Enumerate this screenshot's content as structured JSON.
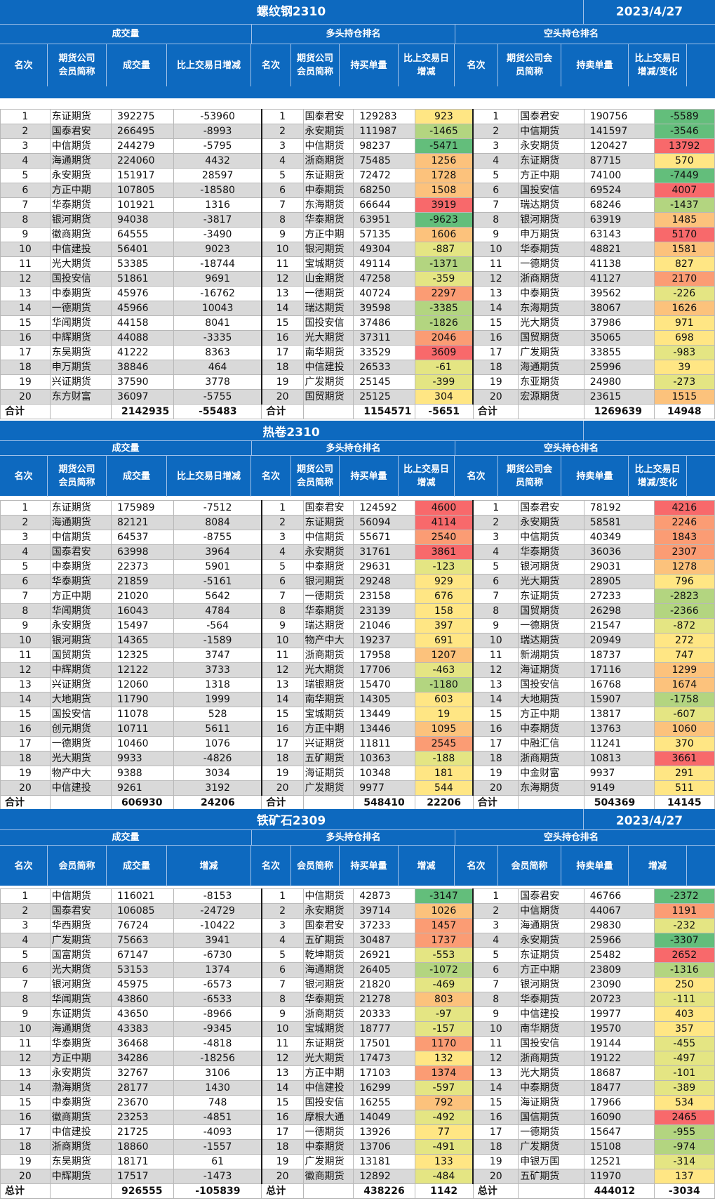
{
  "sections": [
    {
      "title": "螺纹钢2310",
      "date": "2023/4/27",
      "groups": [
        "成交量",
        "多头持仓排名",
        "空头持仓排名"
      ],
      "headers": [
        "名次",
        "期货公司\n会员简称",
        "成交量",
        "比上交易日增减",
        "名次",
        "期货公司\n会员简称",
        "持买单量",
        "比上交易日\n增减",
        "名次",
        "期货公司会\n员简称",
        "持卖单量",
        "比上交易日\n增减/变化"
      ],
      "rows": [
        [
          "1",
          "东证期货",
          "392275",
          "-53960",
          "1",
          "国泰君安",
          "129283",
          "923",
          "1",
          "国泰君安",
          "190756",
          "-5589"
        ],
        [
          "2",
          "国泰君安",
          "266495",
          "-8993",
          "2",
          "永安期货",
          "111987",
          "-1465",
          "2",
          "中信期货",
          "141597",
          "-3546"
        ],
        [
          "3",
          "中信期货",
          "244279",
          "-5795",
          "3",
          "中信期货",
          "98237",
          "-5471",
          "3",
          "永安期货",
          "120427",
          "13792"
        ],
        [
          "4",
          "海通期货",
          "224060",
          "4432",
          "4",
          "浙商期货",
          "75485",
          "1256",
          "4",
          "东证期货",
          "87715",
          "570"
        ],
        [
          "5",
          "永安期货",
          "151917",
          "28597",
          "5",
          "东证期货",
          "72472",
          "1728",
          "5",
          "方正中期",
          "74100",
          "-7449"
        ],
        [
          "6",
          "方正中期",
          "107805",
          "-18580",
          "6",
          "中泰期货",
          "68250",
          "1508",
          "6",
          "国投安信",
          "69524",
          "4007"
        ],
        [
          "7",
          "华泰期货",
          "101921",
          "1316",
          "7",
          "东海期货",
          "66644",
          "3919",
          "7",
          "瑞达期货",
          "68246",
          "-1437"
        ],
        [
          "8",
          "银河期货",
          "94038",
          "-3817",
          "8",
          "华泰期货",
          "63951",
          "-9623",
          "8",
          "银河期货",
          "63919",
          "1485"
        ],
        [
          "9",
          "徽商期货",
          "64555",
          "-3490",
          "9",
          "方正中期",
          "57135",
          "1606",
          "9",
          "申万期货",
          "63143",
          "5170"
        ],
        [
          "10",
          "中信建投",
          "56401",
          "9023",
          "10",
          "银河期货",
          "49304",
          "-887",
          "10",
          "华泰期货",
          "48821",
          "1581"
        ],
        [
          "11",
          "光大期货",
          "53385",
          "-18744",
          "11",
          "宝城期货",
          "49114",
          "-1371",
          "11",
          "一德期货",
          "41138",
          "827"
        ],
        [
          "12",
          "国投安信",
          "51861",
          "9691",
          "12",
          "山金期货",
          "47258",
          "-359",
          "12",
          "浙商期货",
          "41127",
          "2170"
        ],
        [
          "13",
          "中泰期货",
          "45976",
          "-16762",
          "13",
          "一德期货",
          "40724",
          "2297",
          "13",
          "中泰期货",
          "39562",
          "-226"
        ],
        [
          "14",
          "一德期货",
          "45966",
          "10043",
          "14",
          "瑞达期货",
          "39598",
          "-3385",
          "14",
          "东海期货",
          "38067",
          "1626"
        ],
        [
          "15",
          "华闻期货",
          "44158",
          "8041",
          "15",
          "国投安信",
          "37486",
          "-1826",
          "15",
          "光大期货",
          "37986",
          "971"
        ],
        [
          "16",
          "中辉期货",
          "44088",
          "-3335",
          "16",
          "光大期货",
          "37311",
          "2046",
          "16",
          "国贸期货",
          "35065",
          "698"
        ],
        [
          "17",
          "东吴期货",
          "41222",
          "8363",
          "17",
          "南华期货",
          "33529",
          "3609",
          "17",
          "广发期货",
          "33855",
          "-983"
        ],
        [
          "18",
          "申万期货",
          "38846",
          "464",
          "18",
          "中信建投",
          "26533",
          "-61",
          "18",
          "海通期货",
          "25996",
          "39"
        ],
        [
          "19",
          "兴证期货",
          "37590",
          "3778",
          "19",
          "广发期货",
          "25145",
          "-399",
          "19",
          "东亚期货",
          "24980",
          "-273"
        ],
        [
          "20",
          "东方财富",
          "36097",
          "-5755",
          "20",
          "国贸期货",
          "25125",
          "304",
          "20",
          "宏源期货",
          "23615",
          "1515"
        ]
      ],
      "total": [
        "合计",
        "",
        "2142935",
        "-55483",
        "合计",
        "",
        "1154571",
        "-5651",
        "合计",
        "",
        "1269639",
        "14948"
      ]
    },
    {
      "title": "热卷2310",
      "date": "",
      "groups": [
        "成交量",
        "多头持仓排名",
        "空头持仓排名"
      ],
      "headers": [
        "名次",
        "期货公司\n会员简称",
        "成交量",
        "比上交易日增减",
        "名次",
        "期货公司\n会员简称",
        "持买单量",
        "比上交易日\n增减",
        "名次",
        "期货公司会\n员简称",
        "持卖单量",
        "比上交易日\n增减/变化"
      ],
      "rows": [
        [
          "1",
          "东证期货",
          "175989",
          "-7512",
          "1",
          "国泰君安",
          "124592",
          "4600",
          "1",
          "国泰君安",
          "78192",
          "4216"
        ],
        [
          "2",
          "海通期货",
          "82121",
          "8084",
          "2",
          "东证期货",
          "56094",
          "4114",
          "2",
          "永安期货",
          "58581",
          "2246"
        ],
        [
          "3",
          "中信期货",
          "64537",
          "-8755",
          "3",
          "中信期货",
          "55671",
          "2540",
          "3",
          "中信期货",
          "40349",
          "1843"
        ],
        [
          "4",
          "国泰君安",
          "63998",
          "3964",
          "4",
          "永安期货",
          "31761",
          "3861",
          "4",
          "华泰期货",
          "36036",
          "2307"
        ],
        [
          "5",
          "中泰期货",
          "22373",
          "5901",
          "5",
          "中泰期货",
          "29631",
          "-123",
          "5",
          "银河期货",
          "29031",
          "1278"
        ],
        [
          "6",
          "华泰期货",
          "21859",
          "-5161",
          "6",
          "银河期货",
          "29248",
          "929",
          "6",
          "光大期货",
          "28905",
          "796"
        ],
        [
          "7",
          "方正中期",
          "21020",
          "5642",
          "7",
          "一德期货",
          "23158",
          "676",
          "7",
          "东证期货",
          "27233",
          "-2823"
        ],
        [
          "8",
          "华闻期货",
          "16043",
          "4784",
          "8",
          "华泰期货",
          "23139",
          "158",
          "8",
          "国贸期货",
          "26298",
          "-2366"
        ],
        [
          "9",
          "永安期货",
          "15497",
          "-564",
          "9",
          "瑞达期货",
          "21046",
          "397",
          "9",
          "一德期货",
          "21547",
          "-872"
        ],
        [
          "10",
          "银河期货",
          "14365",
          "-1589",
          "10",
          "物产中大",
          "19237",
          "691",
          "10",
          "瑞达期货",
          "20949",
          "272"
        ],
        [
          "11",
          "国贸期货",
          "12325",
          "3747",
          "11",
          "浙商期货",
          "17958",
          "1207",
          "11",
          "新湖期货",
          "18737",
          "747"
        ],
        [
          "12",
          "中辉期货",
          "12122",
          "3733",
          "12",
          "光大期货",
          "17706",
          "-463",
          "12",
          "海证期货",
          "17116",
          "1299"
        ],
        [
          "13",
          "兴证期货",
          "12060",
          "1318",
          "13",
          "瑞银期货",
          "15470",
          "-1180",
          "13",
          "国投安信",
          "16768",
          "1674"
        ],
        [
          "14",
          "大地期货",
          "11790",
          "1999",
          "14",
          "南华期货",
          "14305",
          "603",
          "14",
          "大地期货",
          "15907",
          "-1758"
        ],
        [
          "15",
          "国投安信",
          "11078",
          "528",
          "15",
          "宝城期货",
          "13449",
          "19",
          "15",
          "方正中期",
          "13817",
          "-607"
        ],
        [
          "16",
          "创元期货",
          "10711",
          "5611",
          "16",
          "方正中期",
          "13446",
          "1095",
          "16",
          "中泰期货",
          "13763",
          "1060"
        ],
        [
          "17",
          "一德期货",
          "10460",
          "1076",
          "17",
          "兴证期货",
          "11811",
          "2545",
          "17",
          "中融汇信",
          "11241",
          "370"
        ],
        [
          "18",
          "光大期货",
          "9933",
          "-4826",
          "18",
          "五矿期货",
          "10363",
          "-188",
          "18",
          "浙商期货",
          "10813",
          "3661"
        ],
        [
          "19",
          "物产中大",
          "9388",
          "3034",
          "19",
          "海证期货",
          "10348",
          "181",
          "19",
          "中金财富",
          "9937",
          "291"
        ],
        [
          "20",
          "中信建投",
          "9261",
          "3192",
          "20",
          "广发期货",
          "9977",
          "544",
          "20",
          "东海期货",
          "9149",
          "511"
        ]
      ],
      "total": [
        "合计",
        "",
        "606930",
        "24206",
        "合计",
        "",
        "548410",
        "22206",
        "合计",
        "",
        "504369",
        "14145"
      ]
    },
    {
      "title": "铁矿石2309",
      "date": "2023/4/27",
      "groups": [
        "成交量",
        "多头持仓排名",
        "空头持仓排名"
      ],
      "headers": [
        "名次",
        "会员简称",
        "成交量",
        "增减",
        "名次",
        "会员简称",
        "持买单量",
        "增减",
        "名次",
        "会员简称",
        "持卖单量",
        "增减"
      ],
      "rows": [
        [
          "1",
          "中信期货",
          "116021",
          "-8153",
          "1",
          "中信期货",
          "42873",
          "-3147",
          "1",
          "国泰君安",
          "46766",
          "-2372"
        ],
        [
          "2",
          "国泰君安",
          "106085",
          "-24729",
          "2",
          "永安期货",
          "39714",
          "1026",
          "2",
          "中信期货",
          "44067",
          "1191"
        ],
        [
          "3",
          "华西期货",
          "76724",
          "-10422",
          "3",
          "国泰君安",
          "37233",
          "1457",
          "3",
          "海通期货",
          "29830",
          "-232"
        ],
        [
          "4",
          "广发期货",
          "75663",
          "3941",
          "4",
          "五矿期货",
          "30487",
          "1737",
          "4",
          "永安期货",
          "25966",
          "-3307"
        ],
        [
          "5",
          "国富期货",
          "67147",
          "-6730",
          "5",
          "乾坤期货",
          "26921",
          "-553",
          "5",
          "东证期货",
          "25482",
          "2652"
        ],
        [
          "6",
          "光大期货",
          "53153",
          "1374",
          "6",
          "海通期货",
          "26405",
          "-1072",
          "6",
          "方正中期",
          "23809",
          "-1316"
        ],
        [
          "7",
          "银河期货",
          "45975",
          "-6573",
          "7",
          "银河期货",
          "21820",
          "-469",
          "7",
          "银河期货",
          "23090",
          "250"
        ],
        [
          "8",
          "华闻期货",
          "43860",
          "-6533",
          "8",
          "华泰期货",
          "21278",
          "803",
          "8",
          "华泰期货",
          "20723",
          "-111"
        ],
        [
          "9",
          "东证期货",
          "43650",
          "-8966",
          "9",
          "浙商期货",
          "20333",
          "-97",
          "9",
          "中信建投",
          "19977",
          "403"
        ],
        [
          "10",
          "海通期货",
          "43383",
          "-9345",
          "10",
          "宝城期货",
          "18777",
          "-157",
          "10",
          "南华期货",
          "19570",
          "357"
        ],
        [
          "11",
          "华泰期货",
          "36468",
          "-4818",
          "11",
          "东证期货",
          "17501",
          "1170",
          "11",
          "国投安信",
          "19144",
          "-455"
        ],
        [
          "12",
          "方正中期",
          "34286",
          "-18256",
          "12",
          "光大期货",
          "17473",
          "132",
          "12",
          "浙商期货",
          "19122",
          "-497"
        ],
        [
          "13",
          "永安期货",
          "32767",
          "3106",
          "13",
          "方正中期",
          "17103",
          "1374",
          "13",
          "光大期货",
          "18687",
          "-101"
        ],
        [
          "14",
          "渤海期货",
          "28177",
          "1430",
          "14",
          "中信建投",
          "16299",
          "-597",
          "14",
          "中泰期货",
          "18477",
          "-389"
        ],
        [
          "15",
          "中泰期货",
          "23670",
          "748",
          "15",
          "国投安信",
          "16255",
          "792",
          "15",
          "海证期货",
          "17966",
          "534"
        ],
        [
          "16",
          "徽商期货",
          "23253",
          "-4851",
          "16",
          "摩根大通",
          "14049",
          "-492",
          "16",
          "国信期货",
          "16090",
          "2465"
        ],
        [
          "17",
          "中信建投",
          "21725",
          "-4093",
          "17",
          "一德期货",
          "13926",
          "77",
          "17",
          "一德期货",
          "15647",
          "-955"
        ],
        [
          "18",
          "浙商期货",
          "18860",
          "-1557",
          "18",
          "中泰期货",
          "13706",
          "-491",
          "18",
          "广发期货",
          "15108",
          "-974"
        ],
        [
          "19",
          "东吴期货",
          "18171",
          "61",
          "19",
          "广发期货",
          "13181",
          "133",
          "19",
          "申银万国",
          "12521",
          "-314"
        ],
        [
          "20",
          "中辉期货",
          "17517",
          "-1473",
          "20",
          "徽商期货",
          "12892",
          "-484",
          "20",
          "五矿期货",
          "11970",
          "137"
        ]
      ],
      "total": [
        "总计",
        "",
        "926555",
        "-105839",
        "总计",
        "",
        "438226",
        "1142",
        "总计",
        "",
        "444012",
        "-3034"
      ]
    }
  ],
  "colors": {
    "header": "#0d69bf",
    "grey_row": "#d9d9d9",
    "red": "#f8696b",
    "orange": "#fb9c74",
    "light_orange": "#fcc27c",
    "yellow": "#ffe684",
    "yellow_green": "#e4e583",
    "light_green": "#b3d580",
    "green": "#63be7b"
  }
}
